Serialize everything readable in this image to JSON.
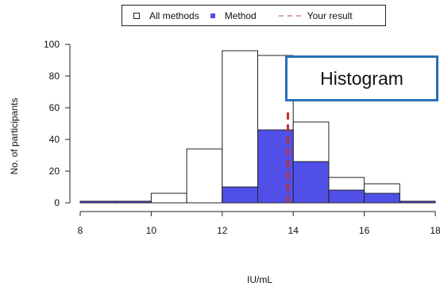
{
  "legend": {
    "all_methods": "All methods",
    "method": "Method",
    "your_result": "Your result"
  },
  "callout": {
    "text": "Histogram"
  },
  "colors": {
    "method_fill": "#5050e8",
    "result_line": "#cc2b2b",
    "outline": "#222222",
    "callout_border": "#2a6fb5"
  },
  "chart_data": {
    "type": "bar",
    "xlabel": "IU/mL",
    "ylabel": "No. of participants",
    "xlim": [
      8,
      18
    ],
    "ylim": [
      0,
      100
    ],
    "x_ticks": [
      8,
      10,
      12,
      14,
      16,
      18
    ],
    "y_ticks": [
      0,
      20,
      40,
      60,
      80,
      100
    ],
    "bin_edges": [
      8,
      9,
      10,
      11,
      12,
      13,
      14,
      15,
      16,
      17,
      18
    ],
    "series": [
      {
        "name": "All methods",
        "values": [
          1,
          1,
          6,
          34,
          96,
          93,
          51,
          16,
          12,
          1
        ]
      },
      {
        "name": "Method",
        "values": [
          1,
          1,
          0,
          0,
          10,
          46,
          26,
          8,
          6,
          1
        ]
      }
    ],
    "your_result": 13.85
  }
}
